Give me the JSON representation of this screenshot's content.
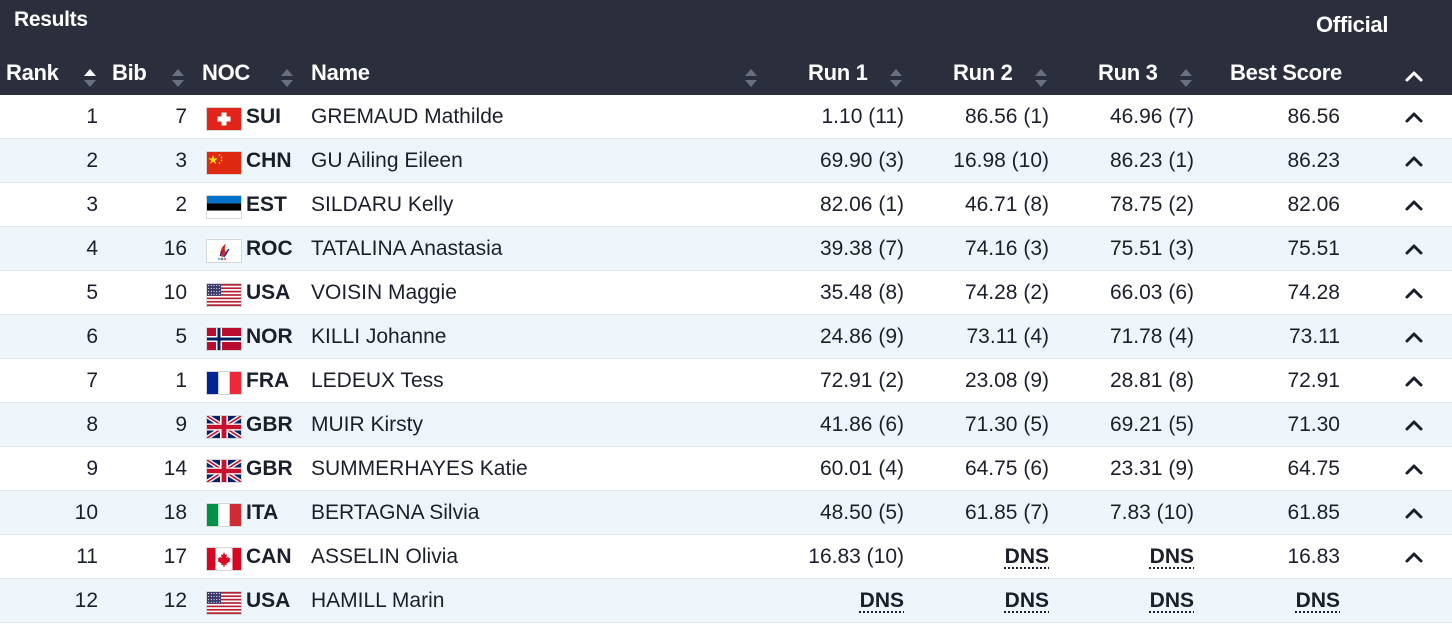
{
  "header": {
    "title": "Results",
    "status": "Official"
  },
  "columns": {
    "rank": "Rank",
    "bib": "Bib",
    "noc": "NOC",
    "name": "Name",
    "run1": "Run 1",
    "run2": "Run 2",
    "run3": "Run 3",
    "best": "Best Score"
  },
  "icons": {
    "sort": "sort-arrows-icon",
    "sort_active_asc": "sort-ascending-icon",
    "collapse": "chevron-up-icon"
  },
  "rows": [
    {
      "rank": "1",
      "bib": "7",
      "flag": "SUI",
      "noc": "SUI",
      "name": "GREMAUD Mathilde",
      "run1": "1.10 (11)",
      "run2": "86.56 (1)",
      "run3": "46.96 (7)",
      "best": "86.56",
      "expandable": true
    },
    {
      "rank": "2",
      "bib": "3",
      "flag": "CHN",
      "noc": "CHN",
      "name": "GU Ailing Eileen",
      "run1": "69.90 (3)",
      "run2": "16.98 (10)",
      "run3": "86.23 (1)",
      "best": "86.23",
      "expandable": true
    },
    {
      "rank": "3",
      "bib": "2",
      "flag": "EST",
      "noc": "EST",
      "name": "SILDARU Kelly",
      "run1": "82.06 (1)",
      "run2": "46.71 (8)",
      "run3": "78.75 (2)",
      "best": "82.06",
      "expandable": true
    },
    {
      "rank": "4",
      "bib": "16",
      "flag": "ROC",
      "noc": "ROC",
      "name": "TATALINA Anastasia",
      "run1": "39.38 (7)",
      "run2": "74.16 (3)",
      "run3": "75.51 (3)",
      "best": "75.51",
      "expandable": true
    },
    {
      "rank": "5",
      "bib": "10",
      "flag": "USA",
      "noc": "USA",
      "name": "VOISIN Maggie",
      "run1": "35.48 (8)",
      "run2": "74.28 (2)",
      "run3": "66.03 (6)",
      "best": "74.28",
      "expandable": true
    },
    {
      "rank": "6",
      "bib": "5",
      "flag": "NOR",
      "noc": "NOR",
      "name": "KILLI Johanne",
      "run1": "24.86 (9)",
      "run2": "73.11 (4)",
      "run3": "71.78 (4)",
      "best": "73.11",
      "expandable": true
    },
    {
      "rank": "7",
      "bib": "1",
      "flag": "FRA",
      "noc": "FRA",
      "name": "LEDEUX Tess",
      "run1": "72.91 (2)",
      "run2": "23.08 (9)",
      "run3": "28.81 (8)",
      "best": "72.91",
      "expandable": true
    },
    {
      "rank": "8",
      "bib": "9",
      "flag": "GBR",
      "noc": "GBR",
      "name": "MUIR Kirsty",
      "run1": "41.86 (6)",
      "run2": "71.30 (5)",
      "run3": "69.21 (5)",
      "best": "71.30",
      "expandable": true
    },
    {
      "rank": "9",
      "bib": "14",
      "flag": "GBR",
      "noc": "GBR",
      "name": "SUMMERHAYES Katie",
      "run1": "60.01 (4)",
      "run2": "64.75 (6)",
      "run3": "23.31 (9)",
      "best": "64.75",
      "expandable": true
    },
    {
      "rank": "10",
      "bib": "18",
      "flag": "ITA",
      "noc": "ITA",
      "name": "BERTAGNA Silvia",
      "run1": "48.50 (5)",
      "run2": "61.85 (7)",
      "run3": "7.83 (10)",
      "best": "61.85",
      "expandable": true
    },
    {
      "rank": "11",
      "bib": "17",
      "flag": "CAN",
      "noc": "CAN",
      "name": "ASSELIN Olivia",
      "run1": "16.83 (10)",
      "run2": "DNS",
      "run3": "DNS",
      "best": "16.83",
      "expandable": true
    },
    {
      "rank": "12",
      "bib": "12",
      "flag": "USA",
      "noc": "USA",
      "name": "HAMILL Marin",
      "run1": "DNS",
      "run2": "DNS",
      "run3": "DNS",
      "best": "DNS",
      "expandable": false
    }
  ],
  "colors": {
    "header_bg": "#2b2f3d",
    "row_alt_bg": "#eef6fc",
    "text": "#1b1f2b"
  }
}
